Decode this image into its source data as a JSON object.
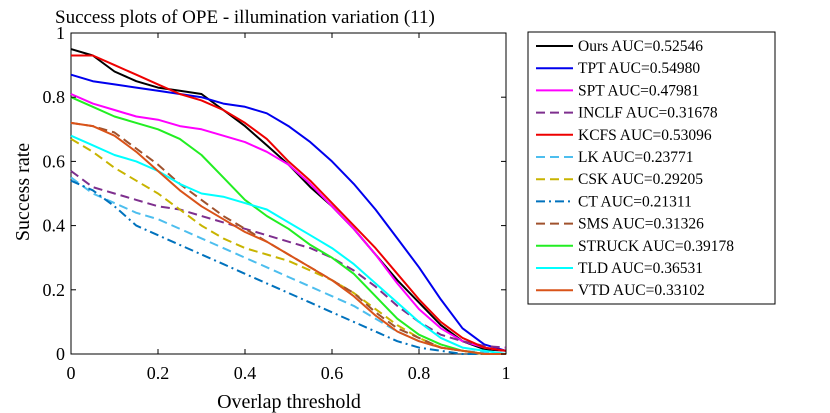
{
  "chart_data": {
    "type": "line",
    "title": "Success plots of OPE - illumination variation (11)",
    "xlabel": "Overlap threshold",
    "ylabel": "Success rate",
    "xlim": [
      0,
      1
    ],
    "ylim": [
      0,
      1
    ],
    "xticks": [
      "0",
      "0.2",
      "0.4",
      "0.6",
      "0.8",
      "1"
    ],
    "yticks": [
      "0",
      "0.2",
      "0.4",
      "0.6",
      "0.8",
      "1"
    ],
    "grid": false,
    "legend_position": "outside-right",
    "series": [
      {
        "name": "Ours AUC=0.52546",
        "color": "#000000",
        "dash": "solid",
        "x": [
          0,
          0.05,
          0.1,
          0.15,
          0.2,
          0.25,
          0.3,
          0.35,
          0.4,
          0.45,
          0.5,
          0.55,
          0.6,
          0.65,
          0.7,
          0.75,
          0.8,
          0.85,
          0.9,
          0.95,
          1.0
        ],
        "y": [
          0.95,
          0.93,
          0.88,
          0.85,
          0.83,
          0.82,
          0.81,
          0.76,
          0.71,
          0.65,
          0.59,
          0.52,
          0.46,
          0.39,
          0.31,
          0.23,
          0.16,
          0.09,
          0.04,
          0.015,
          0.01
        ]
      },
      {
        "name": "TPT AUC=0.54980",
        "color": "#0000ee",
        "dash": "solid",
        "x": [
          0,
          0.05,
          0.1,
          0.15,
          0.2,
          0.25,
          0.3,
          0.35,
          0.4,
          0.45,
          0.5,
          0.55,
          0.6,
          0.65,
          0.7,
          0.75,
          0.8,
          0.85,
          0.9,
          0.95,
          1.0
        ],
        "y": [
          0.87,
          0.85,
          0.84,
          0.83,
          0.82,
          0.81,
          0.8,
          0.78,
          0.77,
          0.75,
          0.71,
          0.66,
          0.6,
          0.53,
          0.45,
          0.36,
          0.27,
          0.17,
          0.08,
          0.03,
          0.01
        ]
      },
      {
        "name": "SPT AUC=0.47981",
        "color": "#ff00ff",
        "dash": "solid",
        "x": [
          0,
          0.05,
          0.1,
          0.15,
          0.2,
          0.25,
          0.3,
          0.35,
          0.4,
          0.45,
          0.5,
          0.55,
          0.6,
          0.65,
          0.7,
          0.75,
          0.8,
          0.85,
          0.9,
          0.95,
          1.0
        ],
        "y": [
          0.81,
          0.78,
          0.76,
          0.74,
          0.73,
          0.71,
          0.7,
          0.68,
          0.66,
          0.63,
          0.59,
          0.53,
          0.46,
          0.39,
          0.31,
          0.22,
          0.14,
          0.08,
          0.04,
          0.02,
          0.01
        ]
      },
      {
        "name": "INCLF AUC=0.31678",
        "color": "#7e2f8e",
        "dash": "dashed",
        "x": [
          0,
          0.05,
          0.1,
          0.15,
          0.2,
          0.25,
          0.3,
          0.35,
          0.4,
          0.45,
          0.5,
          0.55,
          0.6,
          0.65,
          0.7,
          0.75,
          0.8,
          0.85,
          0.9,
          0.95,
          1.0
        ],
        "y": [
          0.57,
          0.52,
          0.5,
          0.48,
          0.46,
          0.45,
          0.43,
          0.41,
          0.39,
          0.37,
          0.35,
          0.33,
          0.3,
          0.26,
          0.21,
          0.15,
          0.1,
          0.06,
          0.04,
          0.025,
          0.02
        ]
      },
      {
        "name": "KCFS AUC=0.53096",
        "color": "#ee0000",
        "dash": "solid",
        "x": [
          0,
          0.05,
          0.1,
          0.15,
          0.2,
          0.25,
          0.3,
          0.35,
          0.4,
          0.45,
          0.5,
          0.55,
          0.6,
          0.65,
          0.7,
          0.75,
          0.8,
          0.85,
          0.9,
          0.95,
          1.0
        ],
        "y": [
          0.93,
          0.93,
          0.9,
          0.87,
          0.84,
          0.81,
          0.79,
          0.76,
          0.72,
          0.67,
          0.6,
          0.54,
          0.47,
          0.4,
          0.33,
          0.25,
          0.17,
          0.1,
          0.05,
          0.02,
          0.01
        ]
      },
      {
        "name": "LK AUC=0.23771",
        "color": "#4dbeee",
        "dash": "dashed",
        "x": [
          0,
          0.05,
          0.1,
          0.15,
          0.2,
          0.25,
          0.3,
          0.35,
          0.4,
          0.45,
          0.5,
          0.55,
          0.6,
          0.65,
          0.7,
          0.75,
          0.8,
          0.85,
          0.9,
          0.95,
          1.0
        ],
        "y": [
          0.55,
          0.5,
          0.47,
          0.44,
          0.42,
          0.39,
          0.36,
          0.33,
          0.3,
          0.27,
          0.24,
          0.21,
          0.18,
          0.15,
          0.11,
          0.07,
          0.04,
          0.02,
          0.01,
          0.005,
          0.0
        ]
      },
      {
        "name": "CSK AUC=0.29205",
        "color": "#c8b400",
        "dash": "dashed",
        "x": [
          0,
          0.05,
          0.1,
          0.15,
          0.2,
          0.25,
          0.3,
          0.35,
          0.4,
          0.45,
          0.5,
          0.55,
          0.6,
          0.65,
          0.7,
          0.75,
          0.8,
          0.85,
          0.9,
          0.95,
          1.0
        ],
        "y": [
          0.67,
          0.63,
          0.58,
          0.54,
          0.5,
          0.45,
          0.4,
          0.36,
          0.33,
          0.31,
          0.29,
          0.26,
          0.23,
          0.19,
          0.14,
          0.09,
          0.05,
          0.02,
          0.01,
          0.0,
          0.0
        ]
      },
      {
        "name": "CT AUC=0.21311",
        "color": "#0072bd",
        "dash": "dashdot",
        "x": [
          0,
          0.05,
          0.1,
          0.15,
          0.2,
          0.25,
          0.3,
          0.35,
          0.4,
          0.45,
          0.5,
          0.55,
          0.6,
          0.65,
          0.7,
          0.75,
          0.8,
          0.85,
          0.9,
          0.95,
          1.0
        ],
        "y": [
          0.54,
          0.51,
          0.46,
          0.4,
          0.37,
          0.34,
          0.31,
          0.28,
          0.25,
          0.22,
          0.19,
          0.16,
          0.13,
          0.1,
          0.07,
          0.04,
          0.02,
          0.01,
          0.0,
          0.0,
          0.0
        ]
      },
      {
        "name": "SMS AUC=0.31326",
        "color": "#a0522d",
        "dash": "dashed",
        "x": [
          0,
          0.05,
          0.1,
          0.15,
          0.2,
          0.25,
          0.3,
          0.35,
          0.4,
          0.45,
          0.5,
          0.55,
          0.6,
          0.65,
          0.7,
          0.75,
          0.8,
          0.85,
          0.9,
          0.95,
          1.0
        ],
        "y": [
          0.72,
          0.71,
          0.69,
          0.64,
          0.59,
          0.53,
          0.48,
          0.43,
          0.39,
          0.35,
          0.31,
          0.27,
          0.23,
          0.19,
          0.13,
          0.08,
          0.05,
          0.02,
          0.01,
          0.0,
          0.0
        ]
      },
      {
        "name": "STRUCK AUC=0.39178",
        "color": "#22ee22",
        "dash": "solid",
        "x": [
          0,
          0.05,
          0.1,
          0.15,
          0.2,
          0.25,
          0.3,
          0.35,
          0.4,
          0.45,
          0.5,
          0.55,
          0.6,
          0.65,
          0.7,
          0.75,
          0.8,
          0.85,
          0.9,
          0.95,
          1.0
        ],
        "y": [
          0.8,
          0.77,
          0.74,
          0.72,
          0.7,
          0.67,
          0.62,
          0.55,
          0.48,
          0.43,
          0.39,
          0.34,
          0.3,
          0.25,
          0.18,
          0.11,
          0.06,
          0.03,
          0.01,
          0.0,
          0.0
        ]
      },
      {
        "name": "TLD AUC=0.36531",
        "color": "#00ffff",
        "dash": "solid",
        "x": [
          0,
          0.05,
          0.1,
          0.15,
          0.2,
          0.25,
          0.3,
          0.35,
          0.4,
          0.45,
          0.5,
          0.55,
          0.6,
          0.65,
          0.7,
          0.75,
          0.8,
          0.85,
          0.9,
          0.95,
          1.0
        ],
        "y": [
          0.68,
          0.65,
          0.62,
          0.6,
          0.57,
          0.53,
          0.5,
          0.49,
          0.47,
          0.45,
          0.41,
          0.37,
          0.33,
          0.28,
          0.22,
          0.16,
          0.1,
          0.05,
          0.02,
          0.01,
          0.0
        ]
      },
      {
        "name": "VTD AUC=0.33102",
        "color": "#d95319",
        "dash": "solid",
        "x": [
          0,
          0.05,
          0.1,
          0.15,
          0.2,
          0.25,
          0.3,
          0.35,
          0.4,
          0.45,
          0.5,
          0.55,
          0.6,
          0.65,
          0.7,
          0.75,
          0.8,
          0.85,
          0.9,
          0.95,
          1.0
        ],
        "y": [
          0.72,
          0.71,
          0.68,
          0.63,
          0.57,
          0.51,
          0.46,
          0.42,
          0.38,
          0.35,
          0.31,
          0.27,
          0.23,
          0.18,
          0.12,
          0.07,
          0.04,
          0.02,
          0.01,
          0.0,
          0.0
        ]
      }
    ]
  }
}
